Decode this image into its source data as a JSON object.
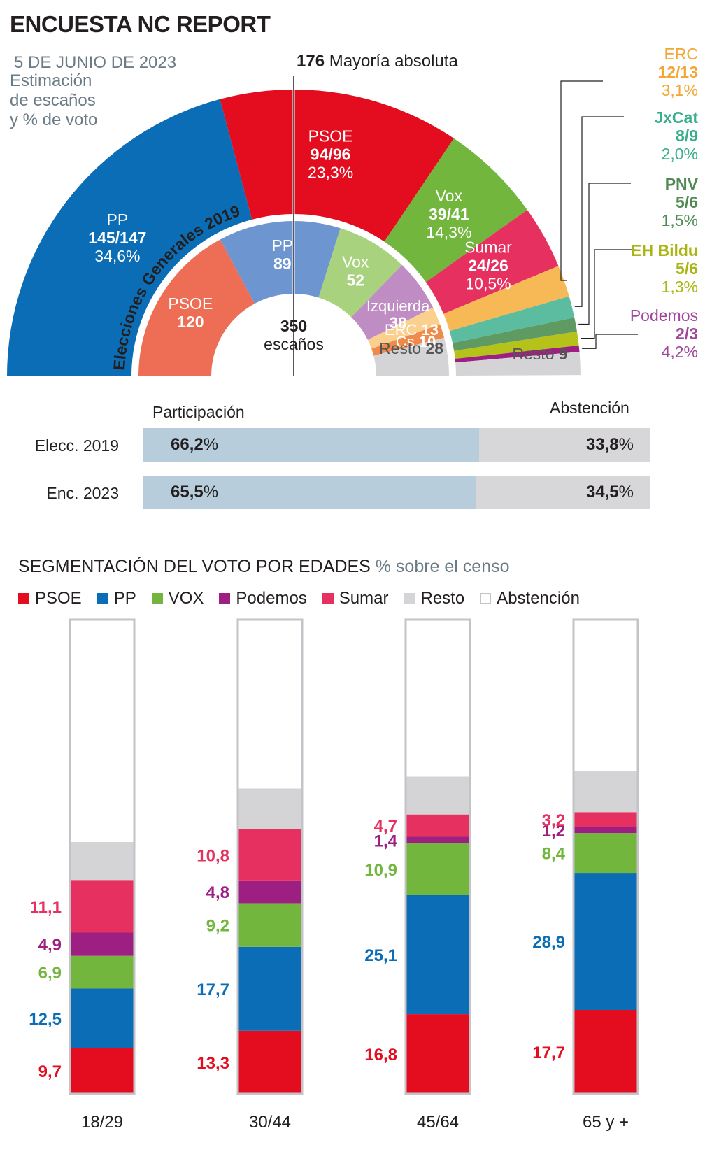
{
  "title": "ENCUESTA NC REPORT",
  "date": "5 DE JUNIO DE 2023",
  "subtitle_lines": [
    "Estimación",
    "de escaños",
    "y % de voto"
  ],
  "majority": {
    "number": "176",
    "text": "Mayoría absoluta"
  },
  "colors": {
    "psoe": "#e30d1f",
    "pp": "#0a6db5",
    "vox": "#72b63e",
    "sumar": "#e6305f",
    "podemos": "#9e1f82",
    "erc": "#f7b955",
    "jxcat": "#5bbca0",
    "pnv": "#5e9a62",
    "bildu": "#b5c21a",
    "resto": "#d4d4d7",
    "psoe2019": "#ed6d55",
    "pp2019": "#6d95cf",
    "vox2019": "#a8d27e",
    "izq2019": "#c08cc4",
    "erc2019": "#fbd08e",
    "cs2019": "#f08a4b",
    "participacion": "#b7cddb",
    "abstencion": "#d7d7da"
  },
  "chart_data": [
    {
      "type": "pie",
      "title": "Estimación de escaños y % de voto",
      "subtitle": "350 escaños",
      "inner_title": "Elecciones Generales 2019",
      "total_seats": 350,
      "center_label": {
        "number": "350",
        "text": "escaños"
      },
      "survey_2023": [
        {
          "party": "PP",
          "seats": 146,
          "seats_label": "145/147",
          "vote": "34,6%",
          "color_key": "pp"
        },
        {
          "party": "PSOE",
          "seats": 95,
          "seats_label": "94/96",
          "vote": "23,3%",
          "color_key": "psoe"
        },
        {
          "party": "Vox",
          "seats": 40,
          "seats_label": "39/41",
          "vote": "14,3%",
          "color_key": "vox"
        },
        {
          "party": "Sumar",
          "seats": 25,
          "seats_label": "24/26",
          "vote": "10,5%",
          "color_key": "sumar"
        },
        {
          "party": "ERC",
          "seats": 12.5,
          "seats_label": "12/13",
          "vote": "3,1%",
          "color_key": "erc"
        },
        {
          "party": "JxCat",
          "seats": 8.5,
          "seats_label": "8/9",
          "vote": "2,0%",
          "color_key": "jxcat"
        },
        {
          "party": "PNV",
          "seats": 5.5,
          "seats_label": "5/6",
          "vote": "1,5%",
          "color_key": "pnv"
        },
        {
          "party": "EH Bildu",
          "seats": 5.5,
          "seats_label": "5/6",
          "vote": "1,3%",
          "color_key": "bildu"
        },
        {
          "party": "Podemos",
          "seats": 2.5,
          "seats_label": "2/3",
          "vote": "4,2%",
          "color_key": "podemos"
        },
        {
          "party": "Resto",
          "seats": 9,
          "seats_label": "9",
          "vote": "",
          "color_key": "resto"
        }
      ],
      "elections_2019": [
        {
          "party": "PSOE",
          "seats": 120,
          "color_key": "psoe2019"
        },
        {
          "party": "PP",
          "seats": 89,
          "color_key": "pp2019"
        },
        {
          "party": "Vox",
          "seats": 52,
          "color_key": "vox2019"
        },
        {
          "party": "Izquierda",
          "seats": 38,
          "color_key": "izq2019"
        },
        {
          "party": "ERC",
          "seats": 13,
          "color_key": "erc2019"
        },
        {
          "party": "Cs",
          "seats": 10,
          "color_key": "cs2019"
        },
        {
          "party": "Resto",
          "seats": 28,
          "color_key": "resto"
        }
      ]
    },
    {
      "type": "bar",
      "title": "Participación",
      "categories": [
        "Elecc. 2019",
        "Enc. 2023"
      ],
      "headers": {
        "participacion": "Participación",
        "abstencion": "Abstención"
      },
      "series": [
        {
          "name": "Participación",
          "values": [
            66.2,
            65.5
          ],
          "labels": [
            "66,2",
            "65,5"
          ]
        },
        {
          "name": "Abstención",
          "values": [
            33.8,
            34.5
          ],
          "labels": [
            "33,8",
            "34,5"
          ]
        }
      ],
      "unit": "%"
    },
    {
      "type": "bar",
      "title": "SEGMENTACIÓN DEL VOTO POR EDADES",
      "subtitle": "% sobre el censo",
      "categories": [
        "18/29",
        "30/44",
        "45/64",
        "65 y +"
      ],
      "ylim": [
        0,
        100
      ],
      "series": [
        {
          "name": "PSOE",
          "color_key": "psoe",
          "values": [
            9.7,
            13.3,
            16.8,
            17.7
          ],
          "labels": [
            "9,7",
            "13,3",
            "16,8",
            "17,7"
          ]
        },
        {
          "name": "PP",
          "color_key": "pp",
          "values": [
            12.5,
            17.7,
            25.1,
            28.9
          ],
          "labels": [
            "12,5",
            "17,7",
            "25,1",
            "28,9"
          ]
        },
        {
          "name": "VOX",
          "color_key": "vox",
          "values": [
            6.9,
            9.2,
            10.9,
            8.4
          ],
          "labels": [
            "6,9",
            "9,2",
            "10,9",
            "8,4"
          ]
        },
        {
          "name": "Podemos",
          "color_key": "podemos",
          "values": [
            4.9,
            4.8,
            1.4,
            1.2
          ],
          "labels": [
            "4,9",
            "4,8",
            "1,4",
            "1,2"
          ]
        },
        {
          "name": "Sumar",
          "color_key": "sumar",
          "values": [
            11.1,
            10.8,
            4.7,
            3.2
          ],
          "labels": [
            "11,1",
            "10,8",
            "4,7",
            "3,2"
          ]
        },
        {
          "name": "Resto",
          "color_key": "resto",
          "values": [
            8.0,
            8.6,
            8.0,
            8.6
          ],
          "labels": [
            "",
            "",
            "",
            ""
          ]
        },
        {
          "name": "Abstención",
          "color_key": "abstencion",
          "values": [
            46.9,
            35.6,
            33.1,
            32.0
          ],
          "labels": [
            "",
            "",
            "",
            ""
          ]
        }
      ]
    }
  ]
}
